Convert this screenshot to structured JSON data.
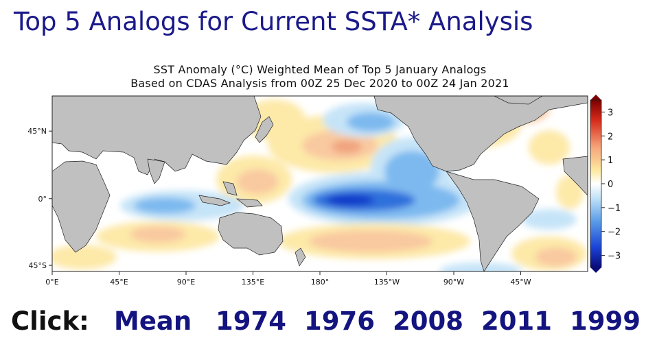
{
  "page": {
    "title": "Top 5 Analogs for Current SSTA* Analysis"
  },
  "map": {
    "title_line1": "SST Anomaly (°C) Weighted Mean of Top 5 January Analogs",
    "title_line2": "Based on CDAS Analysis from 00Z 25 Dec 2020 to 00Z 24 Jan 2021",
    "x_ticks": [
      "0°E",
      "45°E",
      "90°E",
      "135°E",
      "180°",
      "135°W",
      "90°W",
      "45°W"
    ],
    "y_ticks": [
      "45°N",
      "0°",
      "45°S"
    ],
    "colorbar": {
      "range": [
        -3.5,
        3.5
      ],
      "ticks": [
        "3",
        "2",
        "1",
        "0",
        "−1",
        "−2",
        "−3"
      ],
      "tick_values": [
        3,
        2,
        1,
        0,
        -1,
        -2,
        -3
      ]
    },
    "colors": {
      "land": "#c0c0c0",
      "ocean_neutral": "#ffffff",
      "warm_light": "#fde9a8",
      "warm_mid": "#f9c9a0",
      "warm_strong": "#f0a47e",
      "cool_light": "#c6e4f8",
      "cool_mid": "#7db9ef",
      "cool_strong": "#2f6fdc",
      "cool_deep": "#0c38c8"
    }
  },
  "links": {
    "label": "Click:",
    "items": [
      "Mean",
      "1974",
      "1976",
      "2008",
      "2011",
      "1999"
    ]
  }
}
